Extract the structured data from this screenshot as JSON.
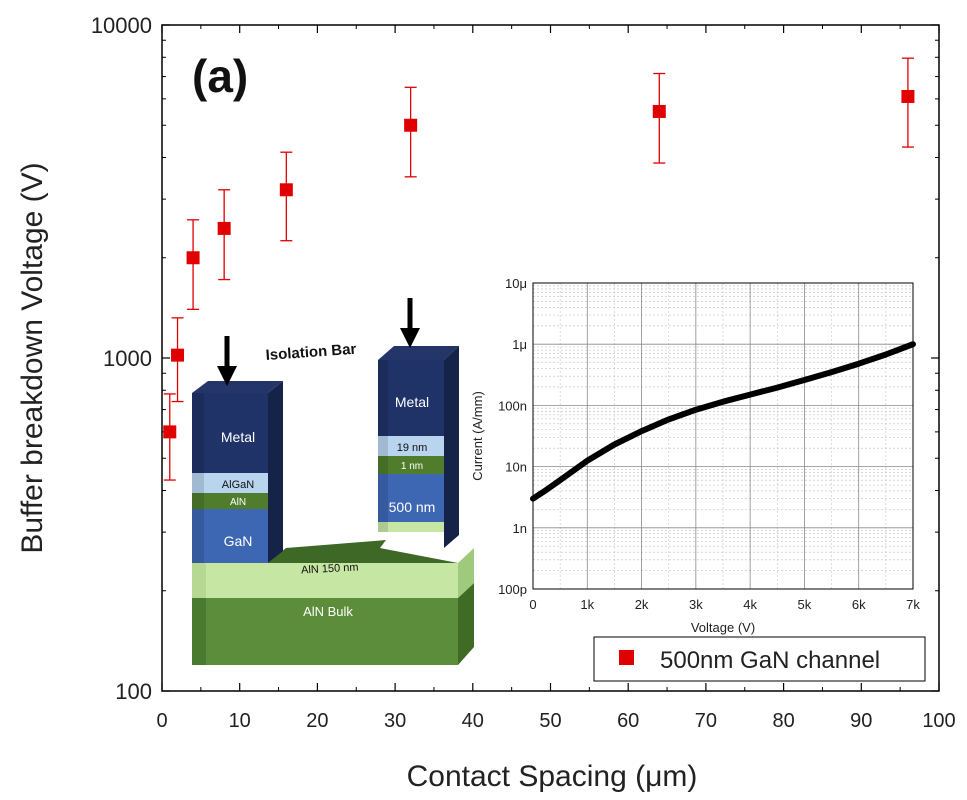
{
  "panel_label": "(a)",
  "chart_data": [
    {
      "type": "scatter",
      "xlabel": "Contact Spacing (μm)",
      "ylabel": "Buffer breakdown Voltage (V)",
      "xlim": [
        0,
        100
      ],
      "ylim": [
        100,
        10000
      ],
      "yscale": "log",
      "x_ticks": [
        "0",
        "10",
        "20",
        "30",
        "40",
        "50",
        "60",
        "70",
        "80",
        "90",
        "100"
      ],
      "y_ticks": [
        "100",
        "1000",
        "10000"
      ],
      "legend_position": "bottom-right",
      "series": [
        {
          "name": "500nm GaN channel",
          "color": "#e00000",
          "marker": "square",
          "points": [
            {
              "x": 1,
              "y": 600,
              "err_low": 430,
              "err_high": 780
            },
            {
              "x": 2,
              "y": 1020,
              "err_low": 740,
              "err_high": 1320
            },
            {
              "x": 4,
              "y": 2000,
              "err_low": 1400,
              "err_high": 2600
            },
            {
              "x": 8,
              "y": 2450,
              "err_low": 1720,
              "err_high": 3200
            },
            {
              "x": 16,
              "y": 3200,
              "err_low": 2250,
              "err_high": 4150
            },
            {
              "x": 32,
              "y": 5000,
              "err_low": 3500,
              "err_high": 6500
            },
            {
              "x": 64,
              "y": 5500,
              "err_low": 3850,
              "err_high": 7150
            },
            {
              "x": 96,
              "y": 6100,
              "err_low": 4300,
              "err_high": 7950
            }
          ]
        }
      ]
    },
    {
      "type": "line",
      "xlabel": "Voltage (V)",
      "ylabel": "Current (A/mm)",
      "xlim": [
        0,
        7000
      ],
      "ylim": [
        1e-10,
        1e-05
      ],
      "yscale": "log",
      "x_ticks": [
        "0",
        "1k",
        "2k",
        "3k",
        "4k",
        "5k",
        "6k",
        "7k"
      ],
      "y_ticks": [
        "100p",
        "1n",
        "10n",
        "100n",
        "1μ",
        "10μ"
      ],
      "grid": true,
      "series": [
        {
          "color": "#000000",
          "x": [
            0,
            250,
            500,
            1000,
            1500,
            2000,
            2500,
            3000,
            3500,
            4000,
            4500,
            5000,
            5500,
            6000,
            6500,
            7000
          ],
          "y": [
            3e-09,
            4.2e-09,
            6e-09,
            1.25e-08,
            2.3e-08,
            3.8e-08,
            5.9e-08,
            8.5e-08,
            1.15e-07,
            1.5e-07,
            1.95e-07,
            2.6e-07,
            3.5e-07,
            4.8e-07,
            6.8e-07,
            1e-06
          ]
        }
      ]
    }
  ],
  "inset_diagram": {
    "title": "Isolation Bar",
    "left_stack": [
      "Metal",
      "AlGaN",
      "AlN",
      "GaN"
    ],
    "right_stack": [
      "Metal",
      "19 nm",
      "1 nm",
      "500 nm"
    ],
    "base_layers": [
      "AlN 150 nm",
      "AlN Bulk"
    ]
  }
}
